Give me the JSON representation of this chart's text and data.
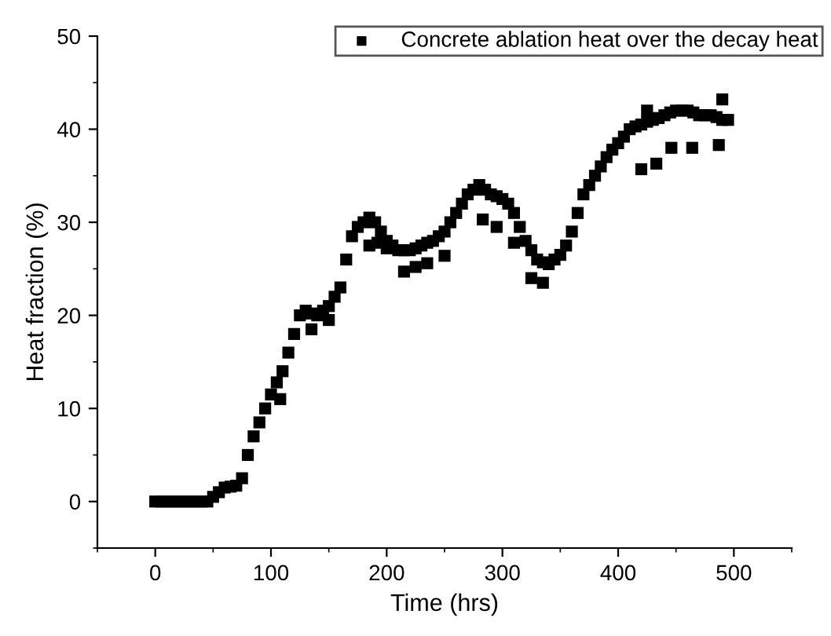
{
  "chart_data": {
    "type": "scatter",
    "xlabel": "Time (hrs)",
    "ylabel": "Heat fraction (%)",
    "xlim": [
      -50,
      550
    ],
    "xticks": [
      0,
      100,
      200,
      300,
      400,
      500
    ],
    "ylim": [
      -5,
      50
    ],
    "yticks": [
      0,
      10,
      20,
      30,
      40,
      50
    ],
    "marker": "square",
    "legend": "top right",
    "grid": false,
    "series": [
      {
        "name": "Concrete ablation heat over the decay heat",
        "color": "#000000",
        "x": [
          0,
          5,
          10,
          15,
          20,
          25,
          30,
          35,
          40,
          45,
          50,
          55,
          60,
          65,
          70,
          75,
          80,
          85,
          90,
          95,
          100,
          105,
          110,
          115,
          120,
          125,
          130,
          135,
          140,
          145,
          150,
          155,
          160,
          165,
          170,
          175,
          180,
          185,
          190,
          195,
          200,
          205,
          210,
          215,
          220,
          225,
          230,
          235,
          240,
          245,
          250,
          255,
          260,
          265,
          270,
          275,
          280,
          285,
          290,
          295,
          300,
          305,
          310,
          315,
          320,
          325,
          330,
          335,
          340,
          345,
          350,
          355,
          360,
          365,
          370,
          375,
          380,
          385,
          390,
          395,
          400,
          405,
          410,
          415,
          420,
          425,
          430,
          435,
          440,
          445,
          450,
          455,
          460,
          465,
          470,
          475,
          480,
          485,
          490,
          495,
          185,
          192,
          200,
          215,
          225,
          235,
          250,
          283,
          295,
          310,
          325,
          335,
          420,
          433,
          446,
          464,
          487,
          425,
          490,
          135,
          150,
          108
        ],
        "values": [
          0,
          0,
          0,
          0,
          0,
          0,
          0,
          0,
          0,
          0,
          0.5,
          1,
          1.5,
          1.6,
          1.7,
          2.5,
          5,
          7,
          8.5,
          10,
          11.5,
          12.8,
          14,
          16,
          18,
          20,
          20.5,
          20.2,
          20,
          20.5,
          21,
          22,
          23,
          26,
          28.5,
          29.5,
          30,
          30.5,
          30,
          29,
          28,
          27.5,
          27,
          27,
          27,
          27.2,
          27.5,
          27.8,
          28,
          28.5,
          29,
          30,
          31,
          32,
          33,
          33.5,
          34,
          33.5,
          33,
          32.8,
          32.5,
          32,
          31,
          29.5,
          28,
          27,
          26,
          25.7,
          25.5,
          26,
          26.5,
          27.5,
          29,
          31,
          33,
          34,
          35,
          36,
          37,
          37.8,
          38.5,
          39.2,
          40,
          40.3,
          40.5,
          40.8,
          41,
          41.2,
          41.5,
          41.8,
          42,
          42,
          42,
          41.8,
          41.5,
          41.5,
          41.5,
          41.3,
          41,
          41,
          27.5,
          27.8,
          27.2,
          24.7,
          25.2,
          25.6,
          26.4,
          30.3,
          29.5,
          27.8,
          24,
          23.5,
          35.7,
          36.3,
          38,
          38,
          38.3,
          42,
          43.2,
          18.5,
          19.5,
          11
        ]
      }
    ]
  }
}
